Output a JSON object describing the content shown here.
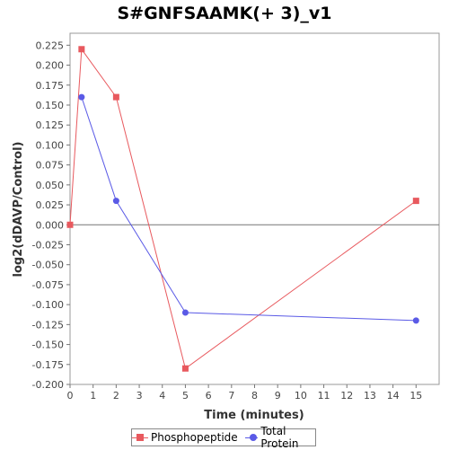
{
  "chart_data": {
    "type": "line",
    "title": "S#GNFSAAMK(+ 3)_v1",
    "xlabel": "Time (minutes)",
    "ylabel": "log2(dDAVP/Control)",
    "xlim": [
      0,
      16
    ],
    "ylim": [
      -0.2,
      0.24
    ],
    "xticks": [
      0,
      1,
      2,
      3,
      4,
      5,
      6,
      7,
      8,
      9,
      10,
      11,
      12,
      13,
      14,
      15
    ],
    "yticks": [
      "0.225",
      "0.200",
      "0.175",
      "0.150",
      "0.125",
      "0.100",
      "0.075",
      "0.050",
      "0.025",
      "0.000",
      "-0.025",
      "-0.050",
      "-0.075",
      "-0.100",
      "-0.125",
      "-0.150",
      "-0.175",
      "-0.200"
    ],
    "ytick_values": [
      0.225,
      0.2,
      0.175,
      0.15,
      0.125,
      0.1,
      0.075,
      0.05,
      0.025,
      0,
      -0.025,
      -0.05,
      -0.075,
      -0.1,
      -0.125,
      -0.15,
      -0.175,
      -0.2
    ],
    "zero_line": true,
    "grid": false,
    "legend_position": "bottom",
    "series": [
      {
        "name": "Phosphopeptide",
        "color": "#e8595e",
        "marker": "square",
        "x": [
          0,
          0.5,
          2,
          5,
          15
        ],
        "y": [
          0.0,
          0.22,
          0.16,
          -0.18,
          0.03
        ]
      },
      {
        "name": "Total Protein",
        "color": "#5a5ae6",
        "marker": "circle",
        "x": [
          0.5,
          2,
          5,
          15
        ],
        "y": [
          0.16,
          0.03,
          -0.11,
          -0.12
        ]
      }
    ]
  }
}
